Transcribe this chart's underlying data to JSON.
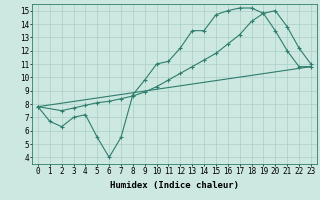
{
  "line1_x": [
    0,
    1,
    2,
    3,
    4,
    5,
    6,
    7,
    8,
    9,
    10,
    11,
    12,
    13,
    14,
    15,
    16,
    17,
    18,
    19,
    20,
    21,
    22,
    23
  ],
  "line1_y": [
    7.8,
    6.7,
    6.3,
    7.0,
    7.2,
    5.5,
    4.0,
    5.5,
    8.7,
    9.8,
    11.0,
    11.2,
    12.2,
    13.5,
    13.5,
    14.7,
    15.0,
    15.2,
    15.2,
    14.8,
    13.5,
    12.0,
    10.8,
    10.8
  ],
  "line2_x": [
    0,
    23
  ],
  "line2_y": [
    7.8,
    10.8
  ],
  "line3_x": [
    0,
    2,
    3,
    4,
    5,
    6,
    7,
    8,
    9,
    10,
    11,
    12,
    13,
    14,
    15,
    16,
    17,
    18,
    19,
    20,
    21,
    22,
    23
  ],
  "line3_y": [
    7.8,
    7.5,
    7.7,
    7.9,
    8.1,
    8.2,
    8.4,
    8.6,
    8.9,
    9.3,
    9.8,
    10.3,
    10.8,
    11.3,
    11.8,
    12.5,
    13.2,
    14.2,
    14.8,
    15.0,
    13.8,
    12.2,
    11.0
  ],
  "color": "#2e7d6e",
  "bg_color": "#cce8e0",
  "grid_color": "#aacfc8",
  "xlabel": "Humidex (Indice chaleur)",
  "xlim": [
    -0.5,
    23.5
  ],
  "ylim": [
    3.5,
    15.5
  ],
  "xticks": [
    0,
    1,
    2,
    3,
    4,
    5,
    6,
    7,
    8,
    9,
    10,
    11,
    12,
    13,
    14,
    15,
    16,
    17,
    18,
    19,
    20,
    21,
    22,
    23
  ],
  "yticks": [
    4,
    5,
    6,
    7,
    8,
    9,
    10,
    11,
    12,
    13,
    14,
    15
  ],
  "xlabel_fontsize": 6.5,
  "tick_fontsize": 5.5,
  "figwidth": 3.2,
  "figheight": 2.0,
  "dpi": 100
}
